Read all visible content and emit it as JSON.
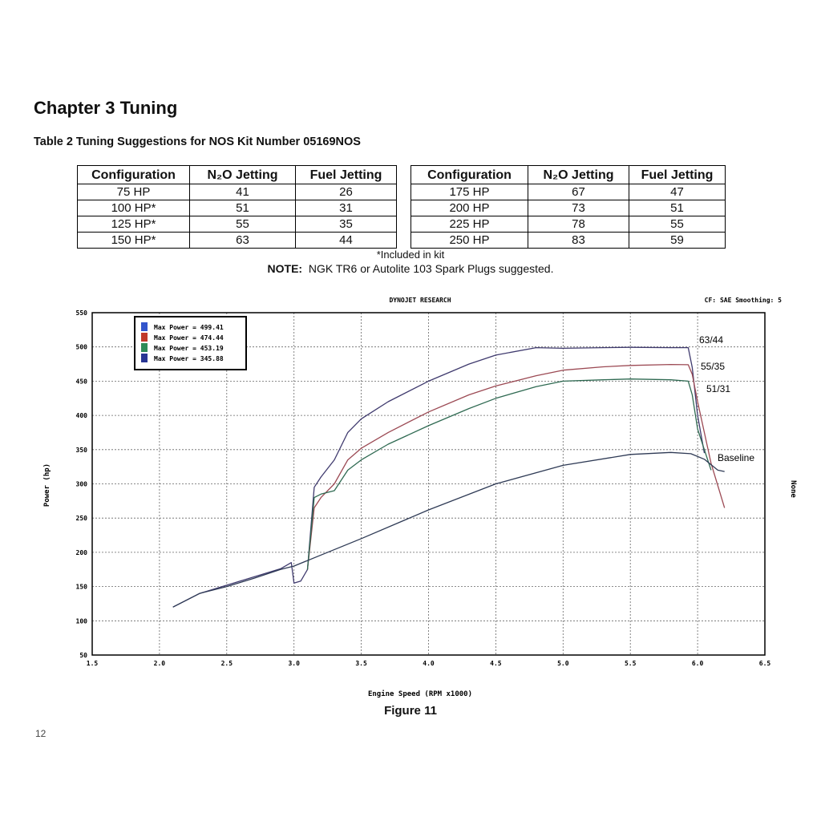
{
  "chapter_title": "Chapter 3  Tuning",
  "table_caption": "Table 2  Tuning Suggestions for NOS Kit Number 05169NOS",
  "table": {
    "headers": [
      "Configuration",
      "N₂O Jetting",
      "Fuel Jetting",
      "Configuration",
      "N₂O Jetting",
      "Fuel Jetting"
    ],
    "rows": [
      [
        "75 HP",
        "41",
        "26",
        "175 HP",
        "67",
        "47"
      ],
      [
        "100 HP*",
        "51",
        "31",
        "200 HP",
        "73",
        "51"
      ],
      [
        "125 HP*",
        "55",
        "35",
        "225 HP",
        "78",
        "55"
      ],
      [
        "150 HP*",
        "63",
        "44",
        "250 HP",
        "83",
        "59"
      ]
    ]
  },
  "footnote": "*Included in kit",
  "note_label": "NOTE:",
  "note_text": "NGK TR6 or Autolite 103 Spark Plugs suggested.",
  "figure_caption": "Figure 11",
  "page_number": "12",
  "colors": {
    "series_63_44": "#3f3a6e",
    "series_55_35": "#9c4a54",
    "series_51_31": "#2f6a52",
    "baseline": "#2e3a55",
    "swatch_blue": "#3355cc",
    "swatch_red": "#c0392b",
    "swatch_green": "#2e8b57",
    "swatch_navy": "#283593"
  },
  "chart_data": {
    "type": "line",
    "header_title": "DYNOJET RESEARCH",
    "header_right": "CF: SAE  Smoothing: 5",
    "right_axis_label": "None",
    "xlabel": "Engine Speed (RPM x1000)",
    "ylabel": "Power (hp)",
    "xlim": [
      1.5,
      6.5
    ],
    "ylim": [
      50,
      550
    ],
    "xticks": [
      "1.5",
      "2.0",
      "2.5",
      "3.0",
      "3.5",
      "4.0",
      "4.5",
      "5.0",
      "5.5",
      "6.0",
      "6.5"
    ],
    "yticks": [
      "50",
      "100",
      "150",
      "200",
      "250",
      "300",
      "350",
      "400",
      "450",
      "500",
      "550"
    ],
    "grid": true,
    "legend_position": "top-left",
    "legend": [
      "Max Power = 499.41",
      "Max Power = 474.44",
      "Max Power = 453.19",
      "Max Power = 345.88"
    ],
    "series": [
      {
        "name": "63/44",
        "x": [
          2.1,
          2.3,
          2.5,
          2.7,
          2.9,
          2.98,
          3.0,
          3.05,
          3.1,
          3.15,
          3.2,
          3.3,
          3.4,
          3.5,
          3.7,
          4.0,
          4.3,
          4.5,
          4.8,
          5.0,
          5.3,
          5.5,
          5.8,
          5.93,
          5.96,
          6.0,
          6.05
        ],
        "y": [
          120,
          140,
          152,
          164,
          176,
          185,
          155,
          158,
          175,
          295,
          310,
          335,
          375,
          395,
          420,
          450,
          475,
          488,
          499,
          498,
          499,
          499.4,
          499,
          499,
          470,
          400,
          345
        ]
      },
      {
        "name": "55/35",
        "x": [
          3.1,
          3.15,
          3.2,
          3.3,
          3.4,
          3.5,
          3.7,
          4.0,
          4.3,
          4.5,
          4.8,
          5.0,
          5.3,
          5.5,
          5.8,
          5.93,
          5.96,
          6.0,
          6.1,
          6.2
        ],
        "y": [
          175,
          265,
          280,
          300,
          335,
          352,
          375,
          405,
          430,
          443,
          458,
          466,
          471,
          473,
          474.4,
          474,
          460,
          420,
          330,
          265
        ]
      },
      {
        "name": "51/31",
        "x": [
          3.1,
          3.15,
          3.2,
          3.3,
          3.4,
          3.5,
          3.7,
          4.0,
          4.3,
          4.5,
          4.8,
          5.0,
          5.3,
          5.5,
          5.8,
          5.93,
          5.96,
          6.0,
          6.1
        ],
        "y": [
          175,
          280,
          285,
          290,
          320,
          335,
          358,
          385,
          410,
          425,
          442,
          450,
          452,
          453.2,
          452,
          450,
          430,
          380,
          320
        ]
      },
      {
        "name": "Baseline",
        "x": [
          2.1,
          2.3,
          2.5,
          2.7,
          2.9,
          3.0,
          3.2,
          3.5,
          4.0,
          4.5,
          5.0,
          5.5,
          5.8,
          5.95,
          6.05,
          6.15,
          6.2
        ],
        "y": [
          120,
          140,
          150,
          162,
          175,
          180,
          196,
          220,
          262,
          300,
          327,
          343,
          345.9,
          344,
          336,
          320,
          318
        ]
      }
    ]
  }
}
